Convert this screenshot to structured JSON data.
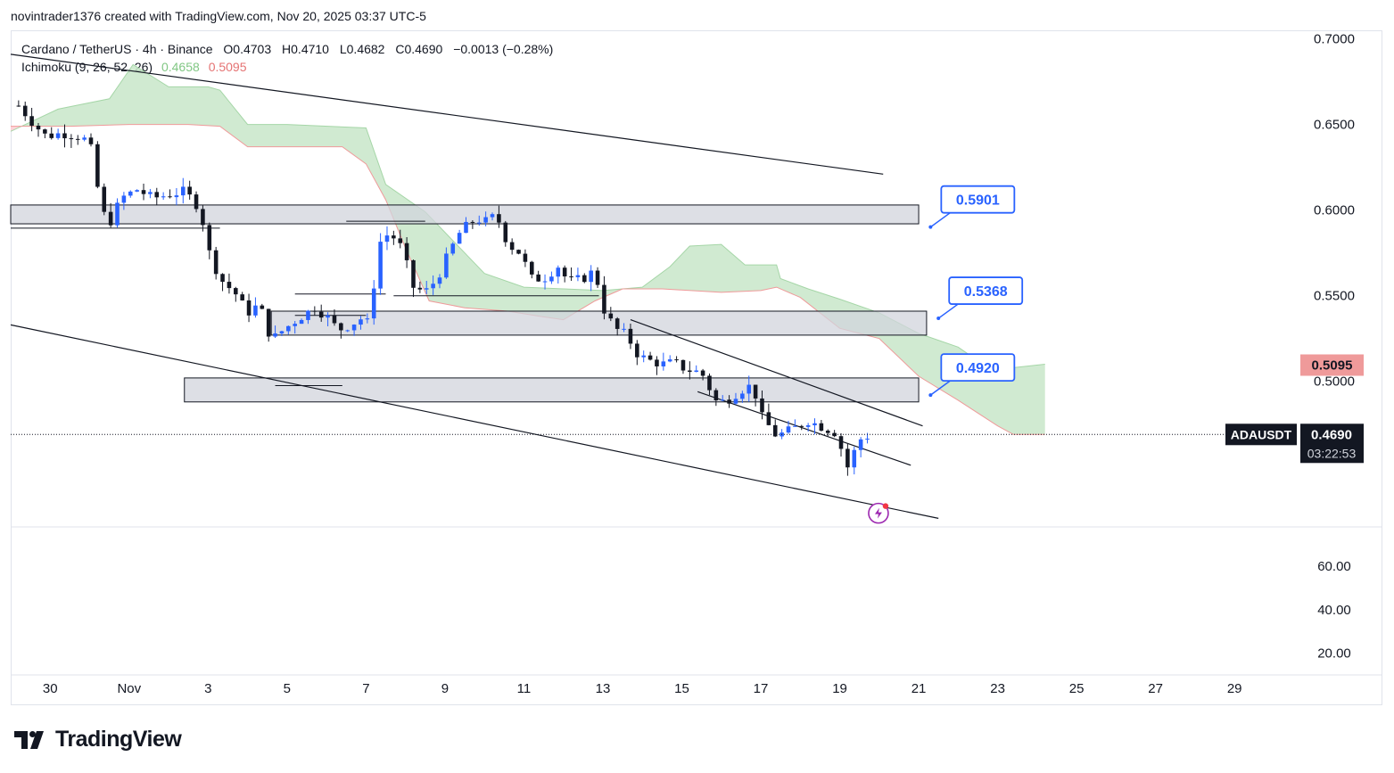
{
  "header": {
    "author_line": "novintrader1376 created with TradingView.com, Nov 20, 2025 03:37 UTC-5"
  },
  "legend": {
    "symbol_line": "Cardano / TetherUS · 4h · Binance",
    "open": "O0.4703",
    "high": "H0.4710",
    "low": "L0.4682",
    "close": "C0.4690",
    "change": "−0.0013 (−0.28%)",
    "indicator_name": "Ichimoku (9, 26, 52, 26)",
    "indicator_val_1": "0.4658",
    "indicator_val_2": "0.5095"
  },
  "colors": {
    "up": "#2962ff",
    "down": "#131722",
    "cloud_bull": "#c8e6c9",
    "cloud_bear": "#ffcdd2",
    "callout": "#2962ff",
    "zone_fill": "#d1d4dc"
  },
  "chart_data": {
    "type": "candlestick",
    "symbol": "ADAUSDT",
    "timeframe": "4h",
    "y_range": [
      0.415,
      0.705
    ],
    "y_ticks": [
      "0.7000",
      "0.6500",
      "0.6000",
      "0.5500",
      "0.5000"
    ],
    "y_tick_values": [
      0.7,
      0.65,
      0.6,
      0.55,
      0.5
    ],
    "x_tick_labels": [
      "30",
      "Nov",
      "3",
      "5",
      "7",
      "9",
      "11",
      "13",
      "15",
      "17",
      "19",
      "21",
      "23",
      "25",
      "27",
      "29"
    ],
    "x_tick_days": [
      30,
      32,
      34,
      36,
      38,
      40,
      42,
      44,
      46,
      48,
      50,
      52,
      54,
      56,
      58,
      60
    ],
    "x_range_days": [
      29,
      61.6
    ],
    "last_price": "0.4690",
    "last_price_value": 0.469,
    "countdown": "03:22:53",
    "price_tag_symbol": "ADAUSDT",
    "cloud_upper_tag": "0.5095",
    "cloud_upper_value": 0.5095,
    "cloud_lower_tag": "0.4658",
    "cloud_lower_value": 0.4658,
    "close_path": [
      [
        29.2,
        0.661
      ],
      [
        29.6,
        0.65
      ],
      [
        29.9,
        0.643
      ],
      [
        30.3,
        0.645
      ],
      [
        30.7,
        0.643
      ],
      [
        31.0,
        0.64
      ],
      [
        31.3,
        0.6
      ],
      [
        31.5,
        0.592
      ],
      [
        31.8,
        0.607
      ],
      [
        32.2,
        0.612
      ],
      [
        32.6,
        0.607
      ],
      [
        33.0,
        0.609
      ],
      [
        33.4,
        0.611
      ],
      [
        33.8,
        0.601
      ],
      [
        34.0,
        0.577
      ],
      [
        34.3,
        0.56
      ],
      [
        34.7,
        0.551
      ],
      [
        35.0,
        0.54
      ],
      [
        35.3,
        0.545
      ],
      [
        35.6,
        0.524
      ],
      [
        35.9,
        0.53
      ],
      [
        36.3,
        0.537
      ],
      [
        36.7,
        0.543
      ],
      [
        37.0,
        0.538
      ],
      [
        37.3,
        0.53
      ],
      [
        37.6,
        0.533
      ],
      [
        37.9,
        0.537
      ],
      [
        38.1,
        0.533
      ],
      [
        38.3,
        0.58
      ],
      [
        38.6,
        0.587
      ],
      [
        38.9,
        0.578
      ],
      [
        39.2,
        0.555
      ],
      [
        39.5,
        0.552
      ],
      [
        39.8,
        0.56
      ],
      [
        40.1,
        0.575
      ],
      [
        40.4,
        0.588
      ],
      [
        40.8,
        0.595
      ],
      [
        41.0,
        0.593
      ],
      [
        41.3,
        0.597
      ],
      [
        41.6,
        0.58
      ],
      [
        41.9,
        0.575
      ],
      [
        42.2,
        0.56
      ],
      [
        42.5,
        0.56
      ],
      [
        42.9,
        0.568
      ],
      [
        43.1,
        0.558
      ],
      [
        43.5,
        0.56
      ],
      [
        43.8,
        0.565
      ],
      [
        44.0,
        0.543
      ],
      [
        44.3,
        0.531
      ],
      [
        44.6,
        0.527
      ],
      [
        44.9,
        0.515
      ],
      [
        45.2,
        0.512
      ],
      [
        45.5,
        0.51
      ],
      [
        45.8,
        0.511
      ],
      [
        46.1,
        0.507
      ],
      [
        46.5,
        0.505
      ],
      [
        46.9,
        0.487
      ],
      [
        47.2,
        0.49
      ],
      [
        47.5,
        0.495
      ],
      [
        47.8,
        0.498
      ],
      [
        48.0,
        0.48
      ],
      [
        48.4,
        0.468
      ],
      [
        48.8,
        0.472
      ],
      [
        49.2,
        0.477
      ],
      [
        49.6,
        0.473
      ],
      [
        49.9,
        0.47
      ],
      [
        50.2,
        0.45
      ],
      [
        50.5,
        0.466
      ],
      [
        50.8,
        0.469
      ]
    ],
    "cloud_span_a": [
      [
        29,
        0.646
      ],
      [
        30.2,
        0.659
      ],
      [
        31.5,
        0.665
      ],
      [
        32.1,
        0.685
      ],
      [
        33.0,
        0.672
      ],
      [
        34.0,
        0.672
      ],
      [
        34.3,
        0.67
      ],
      [
        35.0,
        0.65
      ],
      [
        36.0,
        0.65
      ],
      [
        38.0,
        0.648
      ],
      [
        38.5,
        0.615
      ],
      [
        39.5,
        0.599
      ],
      [
        41.0,
        0.563
      ],
      [
        42.0,
        0.555
      ],
      [
        43.0,
        0.554
      ],
      [
        44.0,
        0.553
      ],
      [
        45.0,
        0.555
      ],
      [
        45.7,
        0.567
      ],
      [
        46.2,
        0.579
      ],
      [
        47.0,
        0.58
      ],
      [
        47.6,
        0.568
      ],
      [
        48.4,
        0.568
      ],
      [
        48.5,
        0.56
      ],
      [
        49.2,
        0.554
      ],
      [
        50.0,
        0.548
      ],
      [
        51.0,
        0.54
      ],
      [
        52.0,
        0.528
      ],
      [
        53.0,
        0.52
      ],
      [
        53.5,
        0.512
      ],
      [
        54.0,
        0.505
      ],
      [
        54.4,
        0.508
      ],
      [
        55.2,
        0.51
      ]
    ],
    "cloud_span_b": [
      [
        29,
        0.649
      ],
      [
        30.5,
        0.649
      ],
      [
        32.0,
        0.65
      ],
      [
        33.5,
        0.65
      ],
      [
        34.3,
        0.649
      ],
      [
        35.0,
        0.637
      ],
      [
        36.0,
        0.637
      ],
      [
        37.4,
        0.637
      ],
      [
        38.0,
        0.627
      ],
      [
        38.5,
        0.606
      ],
      [
        39.0,
        0.578
      ],
      [
        39.6,
        0.547
      ],
      [
        40.5,
        0.543
      ],
      [
        41.6,
        0.541
      ],
      [
        42.4,
        0.538
      ],
      [
        43.0,
        0.536
      ],
      [
        43.8,
        0.547
      ],
      [
        44.5,
        0.554
      ],
      [
        45.5,
        0.554
      ],
      [
        47.0,
        0.552
      ],
      [
        48.0,
        0.553
      ],
      [
        48.4,
        0.555
      ],
      [
        49.0,
        0.549
      ],
      [
        50.0,
        0.531
      ],
      [
        51.0,
        0.525
      ],
      [
        52.0,
        0.503
      ],
      [
        53.0,
        0.489
      ],
      [
        54.0,
        0.474
      ],
      [
        54.4,
        0.469
      ],
      [
        55.2,
        0.469
      ]
    ],
    "zones": [
      {
        "name": "zone-upper",
        "from_day": 29,
        "to_day": 52,
        "low": 0.592,
        "high": 0.603
      },
      {
        "name": "zone-middle",
        "from_day": 35.6,
        "to_day": 52.2,
        "low": 0.527,
        "high": 0.541
      },
      {
        "name": "zone-lower",
        "from_day": 33.4,
        "to_day": 52,
        "low": 0.488,
        "high": 0.502
      }
    ],
    "horizontal_levels": [
      {
        "from_day": 29,
        "to_day": 34.3,
        "value": 0.5895
      },
      {
        "from_day": 37.5,
        "to_day": 39.5,
        "value": 0.5935
      },
      {
        "from_day": 36.2,
        "to_day": 38.5,
        "value": 0.551
      },
      {
        "from_day": 38.7,
        "to_day": 43.9,
        "value": 0.55
      },
      {
        "from_day": 36.2,
        "to_day": 38.0,
        "value": 0.5385
      },
      {
        "from_day": 35.7,
        "to_day": 37.4,
        "value": 0.4975
      }
    ],
    "trendlines": [
      {
        "name": "descending-channel-top",
        "from": [
          29,
          0.691
        ],
        "to": [
          51.1,
          0.621
        ]
      },
      {
        "name": "descending-channel-bottom",
        "from": [
          29,
          0.533
        ],
        "to": [
          52.5,
          0.42
        ]
      },
      {
        "name": "wedge-top",
        "from": [
          44.7,
          0.536
        ],
        "to": [
          52.1,
          0.474
        ]
      },
      {
        "name": "wedge-bottom",
        "from": [
          46.4,
          0.494
        ],
        "to": [
          51.8,
          0.451
        ]
      }
    ],
    "callouts": [
      {
        "label": "0.5901",
        "value": 0.5901,
        "anchor_day": 52.3
      },
      {
        "label": "0.5368",
        "value": 0.5368,
        "anchor_day": 52.5
      },
      {
        "label": "0.4920",
        "value": 0.492,
        "anchor_day": 52.3
      }
    ],
    "indicator_pane": {
      "ticks": [
        "60.00",
        "40.00",
        "20.00"
      ],
      "tick_values": [
        60,
        40,
        20
      ],
      "range": [
        10,
        78
      ]
    }
  },
  "footer": {
    "brand": "TradingView"
  }
}
